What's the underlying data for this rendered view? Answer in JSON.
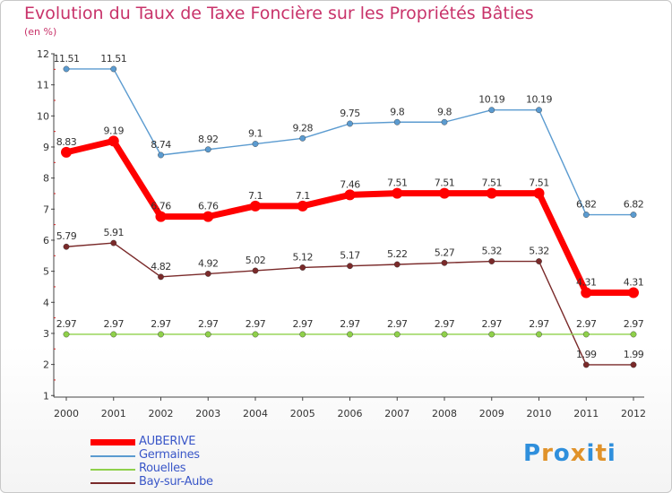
{
  "title": "Evolution du Taux de Taxe Foncière sur les Propriétés Bâties",
  "subtitle": "(en %)",
  "logo": {
    "letters": [
      "P",
      "r",
      "o",
      "x",
      "i",
      "t",
      "i"
    ],
    "colors": [
      "#2f8fdc",
      "#e0922a",
      "#2f8fdc",
      "#e0922a",
      "#2f8fdc",
      "#e0922a",
      "#2f8fdc"
    ]
  },
  "chart_data": {
    "type": "line",
    "title": "Evolution du Taux de Taxe Foncière sur les Propriétés Bâties",
    "ylabel": "(en %)",
    "xlabel": "",
    "ylim": [
      1,
      12
    ],
    "yticks": [
      "1",
      "2",
      "3",
      "4",
      "5",
      "6",
      "7",
      "8",
      "9",
      "10",
      "11",
      "12"
    ],
    "categories": [
      "2000",
      "2001",
      "2002",
      "2003",
      "2004",
      "2005",
      "2006",
      "2007",
      "2008",
      "2009",
      "2010",
      "2011",
      "2012"
    ],
    "series": [
      {
        "name": "Germaines",
        "color": "#5b9bd0",
        "values": [
          11.51,
          11.51,
          8.74,
          8.92,
          9.1,
          9.28,
          9.75,
          9.8,
          9.8,
          10.19,
          10.19,
          6.82,
          6.82
        ],
        "labels": [
          "11.51",
          "11.51",
          "8.74",
          "8.92",
          "9.1",
          "9.28",
          "9.75",
          "9.8",
          "9.8",
          "10.19",
          "10.19",
          "6.82",
          "6.82"
        ]
      },
      {
        "name": "Bay-sur-Aube",
        "color": "#7a2a2a",
        "values": [
          5.79,
          5.91,
          4.82,
          4.92,
          5.02,
          5.12,
          5.17,
          5.22,
          5.27,
          5.32,
          5.32,
          1.99,
          1.99
        ],
        "labels": [
          "5.79",
          "5.91",
          "4.82",
          "4.92",
          "5.02",
          "5.12",
          "5.17",
          "5.22",
          "5.27",
          "5.32",
          "5.32",
          "1.99",
          "1.99"
        ]
      },
      {
        "name": "Rouelles",
        "color": "#8fd04a",
        "values": [
          2.97,
          2.97,
          2.97,
          2.97,
          2.97,
          2.97,
          2.97,
          2.97,
          2.97,
          2.97,
          2.97,
          2.97,
          2.97
        ],
        "labels": [
          "2.97",
          "2.97",
          "2.97",
          "2.97",
          "2.97",
          "2.97",
          "2.97",
          "2.97",
          "2.97",
          "2.97",
          "2.97",
          "2.97",
          "2.97"
        ]
      },
      {
        "name": "AUBERIVE",
        "color": "#ff0000",
        "values": [
          8.83,
          9.19,
          6.76,
          6.76,
          7.1,
          7.1,
          7.46,
          7.51,
          7.51,
          7.51,
          7.51,
          4.31,
          4.31
        ],
        "labels": [
          "8.83",
          "9.19",
          "6.76",
          "6.76",
          "7.1",
          "7.1",
          "7.46",
          "7.51",
          "7.51",
          "7.51",
          "7.51",
          "4.31",
          "4.31"
        ]
      }
    ],
    "legend": [
      "AUBERIVE",
      "Germaines",
      "Rouelles",
      "Bay-sur-Aube"
    ],
    "legend_position": "bottom-left"
  }
}
